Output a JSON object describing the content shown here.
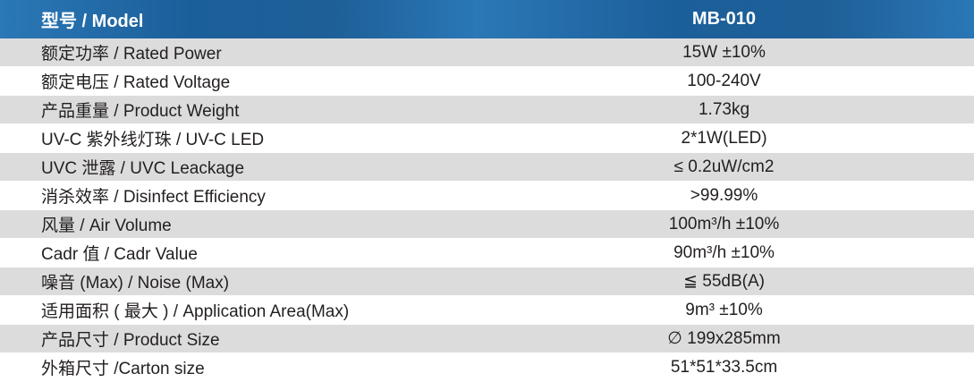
{
  "header": {
    "label": "型号 / Model",
    "model": "MB-010"
  },
  "colors": {
    "header_bg": "#1e5f97",
    "header_text": "#ffffff",
    "stripe": "#dcdcdd",
    "text": "#231f20"
  },
  "rows": [
    {
      "label": "额定功率 / Rated Power",
      "value": "15W  ±10%"
    },
    {
      "label": "额定电压 / Rated Voltage",
      "value": "100-240V"
    },
    {
      "label": "产品重量 / Product Weight",
      "value": "1.73kg"
    },
    {
      "label": "UV-C 紫外线灯珠 / UV-C LED",
      "value": "2*1W(LED)"
    },
    {
      "label": "UVC 泄露 / UVC Leackage",
      "value": "≤ 0.2uW/cm2"
    },
    {
      "label": "消杀效率 / Disinfect Efficiency",
      "value": ">99.99%"
    },
    {
      "label": "风量 / Air Volume",
      "value": "100m³/h  ±10%"
    },
    {
      "label": "Cadr 值 / Cadr Value",
      "value": "90m³/h  ±10%"
    },
    {
      "label": "噪音 (Max) / Noise (Max)",
      "value": "≦ 55dB(A)"
    },
    {
      "label": "适用面积 ( 最大 )  / Application Area(Max)",
      "value": "9m³  ±10%"
    },
    {
      "label": "产品尺寸 / Product Size",
      "value": "∅ 199x285mm"
    },
    {
      "label": "外箱尺寸 /Carton size",
      "value": "51*51*33.5cm"
    }
  ]
}
